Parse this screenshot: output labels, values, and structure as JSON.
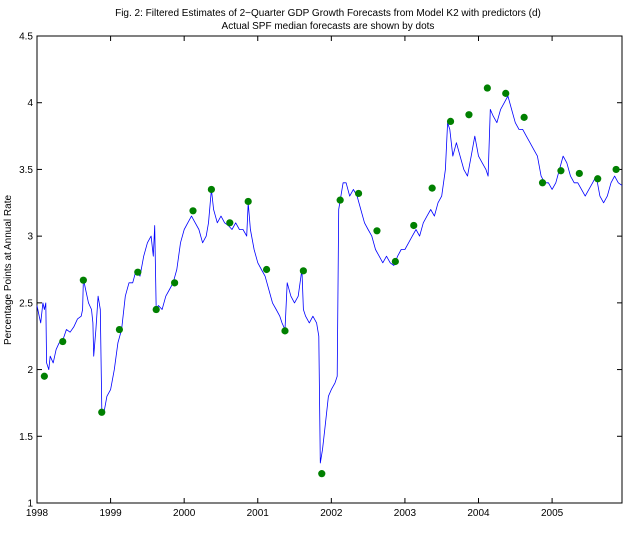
{
  "chart_data": {
    "type": "line",
    "title": "Fig. 2: Filtered Estimates of 2−Quarter GDP Growth Forecasts from Model K2 with predictors (d)",
    "subtitle": "Actual SPF median forecasts are shown by dots",
    "xlabel": "",
    "ylabel": "Percentage Points at Annual Rate",
    "xlim": [
      1998.0,
      2005.95
    ],
    "ylim": [
      1.0,
      4.5
    ],
    "grid": false,
    "legend": "none",
    "x_ticks": [
      {
        "value": 1998,
        "label": "1998"
      },
      {
        "value": 1999,
        "label": "1999"
      },
      {
        "value": 2000,
        "label": "2000"
      },
      {
        "value": 2001,
        "label": "2001"
      },
      {
        "value": 2002,
        "label": "2002"
      },
      {
        "value": 2003,
        "label": "2003"
      },
      {
        "value": 2004,
        "label": "2004"
      },
      {
        "value": 2005,
        "label": "2005"
      }
    ],
    "y_ticks": [
      {
        "value": 1.0,
        "label": "1"
      },
      {
        "value": 1.5,
        "label": "1.5"
      },
      {
        "value": 2.0,
        "label": "2"
      },
      {
        "value": 2.5,
        "label": "2.5"
      },
      {
        "value": 3.0,
        "label": "3"
      },
      {
        "value": 3.5,
        "label": "3.5"
      },
      {
        "value": 4.0,
        "label": "4"
      },
      {
        "value": 4.5,
        "label": "4.5"
      }
    ],
    "series": [
      {
        "kind": "line",
        "color": "#0000ff",
        "points": [
          [
            1998.0,
            2.48
          ],
          [
            1998.03,
            2.4
          ],
          [
            1998.05,
            2.35
          ],
          [
            1998.08,
            2.5
          ],
          [
            1998.1,
            2.45
          ],
          [
            1998.12,
            2.5
          ],
          [
            1998.13,
            2.05
          ],
          [
            1998.16,
            2.0
          ],
          [
            1998.18,
            2.1
          ],
          [
            1998.22,
            2.05
          ],
          [
            1998.26,
            2.15
          ],
          [
            1998.3,
            2.2
          ],
          [
            1998.35,
            2.22
          ],
          [
            1998.4,
            2.3
          ],
          [
            1998.45,
            2.28
          ],
          [
            1998.5,
            2.32
          ],
          [
            1998.55,
            2.38
          ],
          [
            1998.6,
            2.4
          ],
          [
            1998.62,
            2.45
          ],
          [
            1998.63,
            2.68
          ],
          [
            1998.66,
            2.6
          ],
          [
            1998.7,
            2.5
          ],
          [
            1998.74,
            2.45
          ],
          [
            1998.76,
            2.35
          ],
          [
            1998.77,
            2.1
          ],
          [
            1998.8,
            2.3
          ],
          [
            1998.83,
            2.55
          ],
          [
            1998.86,
            2.45
          ],
          [
            1998.88,
            1.7
          ],
          [
            1998.91,
            1.68
          ],
          [
            1998.95,
            1.8
          ],
          [
            1999.0,
            1.85
          ],
          [
            1999.05,
            2.0
          ],
          [
            1999.1,
            2.2
          ],
          [
            1999.15,
            2.3
          ],
          [
            1999.2,
            2.55
          ],
          [
            1999.25,
            2.65
          ],
          [
            1999.3,
            2.65
          ],
          [
            1999.35,
            2.75
          ],
          [
            1999.4,
            2.7
          ],
          [
            1999.45,
            2.85
          ],
          [
            1999.5,
            2.95
          ],
          [
            1999.55,
            3.0
          ],
          [
            1999.58,
            2.85
          ],
          [
            1999.6,
            3.08
          ],
          [
            1999.62,
            2.45
          ],
          [
            1999.65,
            2.48
          ],
          [
            1999.7,
            2.45
          ],
          [
            1999.75,
            2.55
          ],
          [
            1999.8,
            2.6
          ],
          [
            1999.85,
            2.65
          ],
          [
            1999.9,
            2.75
          ],
          [
            1999.95,
            2.95
          ],
          [
            2000.0,
            3.05
          ],
          [
            2000.05,
            3.1
          ],
          [
            2000.1,
            3.15
          ],
          [
            2000.15,
            3.1
          ],
          [
            2000.2,
            3.05
          ],
          [
            2000.25,
            2.95
          ],
          [
            2000.3,
            3.0
          ],
          [
            2000.33,
            3.1
          ],
          [
            2000.37,
            3.35
          ],
          [
            2000.4,
            3.2
          ],
          [
            2000.45,
            3.1
          ],
          [
            2000.5,
            3.15
          ],
          [
            2000.55,
            3.1
          ],
          [
            2000.6,
            3.08
          ],
          [
            2000.65,
            3.05
          ],
          [
            2000.7,
            3.1
          ],
          [
            2000.75,
            3.05
          ],
          [
            2000.8,
            3.05
          ],
          [
            2000.85,
            3.0
          ],
          [
            2000.87,
            3.25
          ],
          [
            2000.9,
            3.05
          ],
          [
            2000.95,
            2.9
          ],
          [
            2001.0,
            2.8
          ],
          [
            2001.05,
            2.75
          ],
          [
            2001.1,
            2.7
          ],
          [
            2001.15,
            2.6
          ],
          [
            2001.2,
            2.5
          ],
          [
            2001.25,
            2.45
          ],
          [
            2001.3,
            2.4
          ],
          [
            2001.33,
            2.35
          ],
          [
            2001.37,
            2.3
          ],
          [
            2001.4,
            2.65
          ],
          [
            2001.45,
            2.55
          ],
          [
            2001.5,
            2.5
          ],
          [
            2001.55,
            2.55
          ],
          [
            2001.6,
            2.75
          ],
          [
            2001.62,
            2.45
          ],
          [
            2001.65,
            2.4
          ],
          [
            2001.7,
            2.35
          ],
          [
            2001.75,
            2.4
          ],
          [
            2001.8,
            2.35
          ],
          [
            2001.83,
            2.25
          ],
          [
            2001.85,
            1.3
          ],
          [
            2001.88,
            1.4
          ],
          [
            2001.92,
            1.6
          ],
          [
            2001.96,
            1.8
          ],
          [
            2002.0,
            1.85
          ],
          [
            2002.05,
            1.9
          ],
          [
            2002.08,
            1.95
          ],
          [
            2002.1,
            3.2
          ],
          [
            2002.13,
            3.3
          ],
          [
            2002.16,
            3.4
          ],
          [
            2002.2,
            3.4
          ],
          [
            2002.25,
            3.3
          ],
          [
            2002.3,
            3.35
          ],
          [
            2002.35,
            3.3
          ],
          [
            2002.4,
            3.2
          ],
          [
            2002.45,
            3.1
          ],
          [
            2002.5,
            3.05
          ],
          [
            2002.55,
            3.0
          ],
          [
            2002.6,
            2.9
          ],
          [
            2002.65,
            2.85
          ],
          [
            2002.7,
            2.8
          ],
          [
            2002.75,
            2.85
          ],
          [
            2002.8,
            2.8
          ],
          [
            2002.85,
            2.78
          ],
          [
            2002.9,
            2.85
          ],
          [
            2002.95,
            2.9
          ],
          [
            2003.0,
            2.9
          ],
          [
            2003.05,
            2.95
          ],
          [
            2003.1,
            3.0
          ],
          [
            2003.15,
            3.05
          ],
          [
            2003.2,
            3.0
          ],
          [
            2003.25,
            3.1
          ],
          [
            2003.3,
            3.15
          ],
          [
            2003.35,
            3.2
          ],
          [
            2003.4,
            3.15
          ],
          [
            2003.45,
            3.25
          ],
          [
            2003.5,
            3.3
          ],
          [
            2003.55,
            3.5
          ],
          [
            2003.58,
            3.85
          ],
          [
            2003.61,
            3.8
          ],
          [
            2003.65,
            3.6
          ],
          [
            2003.7,
            3.7
          ],
          [
            2003.75,
            3.6
          ],
          [
            2003.8,
            3.5
          ],
          [
            2003.85,
            3.45
          ],
          [
            2003.9,
            3.6
          ],
          [
            2003.95,
            3.75
          ],
          [
            2004.0,
            3.6
          ],
          [
            2004.05,
            3.55
          ],
          [
            2004.1,
            3.5
          ],
          [
            2004.13,
            3.45
          ],
          [
            2004.16,
            3.95
          ],
          [
            2004.2,
            3.9
          ],
          [
            2004.25,
            3.85
          ],
          [
            2004.3,
            3.95
          ],
          [
            2004.35,
            4.0
          ],
          [
            2004.4,
            4.05
          ],
          [
            2004.45,
            3.95
          ],
          [
            2004.5,
            3.85
          ],
          [
            2004.55,
            3.8
          ],
          [
            2004.6,
            3.8
          ],
          [
            2004.65,
            3.75
          ],
          [
            2004.7,
            3.7
          ],
          [
            2004.75,
            3.65
          ],
          [
            2004.8,
            3.6
          ],
          [
            2004.85,
            3.45
          ],
          [
            2004.9,
            3.4
          ],
          [
            2004.95,
            3.4
          ],
          [
            2005.0,
            3.35
          ],
          [
            2005.05,
            3.4
          ],
          [
            2005.1,
            3.5
          ],
          [
            2005.15,
            3.6
          ],
          [
            2005.2,
            3.55
          ],
          [
            2005.25,
            3.45
          ],
          [
            2005.3,
            3.4
          ],
          [
            2005.35,
            3.4
          ],
          [
            2005.4,
            3.35
          ],
          [
            2005.45,
            3.3
          ],
          [
            2005.5,
            3.35
          ],
          [
            2005.55,
            3.4
          ],
          [
            2005.6,
            3.45
          ],
          [
            2005.65,
            3.3
          ],
          [
            2005.7,
            3.25
          ],
          [
            2005.75,
            3.3
          ],
          [
            2005.8,
            3.4
          ],
          [
            2005.85,
            3.45
          ],
          [
            2005.9,
            3.4
          ],
          [
            2005.95,
            3.38
          ]
        ]
      },
      {
        "kind": "dots",
        "color": "#008000",
        "points": [
          [
            1998.1,
            1.95
          ],
          [
            1998.35,
            2.21
          ],
          [
            1998.63,
            2.67
          ],
          [
            1998.88,
            1.68
          ],
          [
            1999.12,
            2.3
          ],
          [
            1999.37,
            2.73
          ],
          [
            1999.62,
            2.45
          ],
          [
            1999.87,
            2.65
          ],
          [
            2000.12,
            3.19
          ],
          [
            2000.37,
            3.35
          ],
          [
            2000.62,
            3.1
          ],
          [
            2000.87,
            3.26
          ],
          [
            2001.12,
            2.75
          ],
          [
            2001.37,
            2.29
          ],
          [
            2001.62,
            2.74
          ],
          [
            2001.87,
            1.22
          ],
          [
            2002.12,
            3.27
          ],
          [
            2002.37,
            3.32
          ],
          [
            2002.62,
            3.04
          ],
          [
            2002.87,
            2.81
          ],
          [
            2003.12,
            3.08
          ],
          [
            2003.37,
            3.36
          ],
          [
            2003.62,
            3.86
          ],
          [
            2003.87,
            3.91
          ],
          [
            2004.12,
            4.11
          ],
          [
            2004.37,
            4.07
          ],
          [
            2004.62,
            3.89
          ],
          [
            2004.87,
            3.4
          ],
          [
            2005.12,
            3.49
          ],
          [
            2005.37,
            3.47
          ],
          [
            2005.62,
            3.43
          ],
          [
            2005.87,
            3.5
          ]
        ]
      }
    ]
  }
}
